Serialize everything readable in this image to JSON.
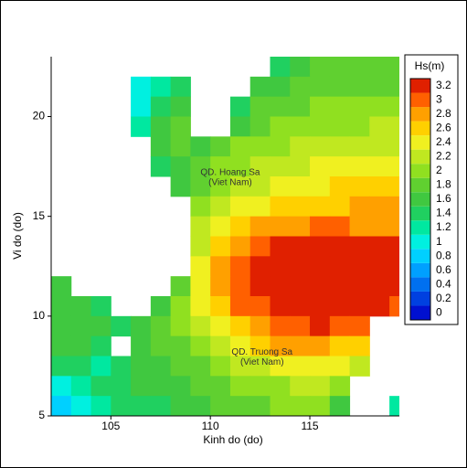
{
  "chart_data": {
    "type": "heatmap",
    "xlabel": "Kinh do (do)",
    "ylabel": "Vi do (do)",
    "xlim": [
      102,
      119.5
    ],
    "ylim": [
      5,
      23
    ],
    "xticks": [
      105,
      110,
      115
    ],
    "yticks": [
      5,
      10,
      15,
      20
    ],
    "colorbar_title": "Hs(m)",
    "clim": [
      -0.1,
      3.3
    ],
    "colorbar_ticks": [
      0,
      0.2,
      0.4,
      0.6,
      0.8,
      1,
      1.2,
      1.4,
      1.6,
      1.8,
      2,
      2.2,
      2.4,
      2.6,
      2.8,
      3,
      3.2
    ],
    "colors": [
      "#0010d0",
      "#0040e0",
      "#0070f0",
      "#00a0ff",
      "#00d0ff",
      "#00f0e0",
      "#00e8a0",
      "#20d060",
      "#40c840",
      "#60d030",
      "#90e020",
      "#c0e820",
      "#f0f020",
      "#ffd000",
      "#ffa000",
      "#ff6000",
      "#e02000"
    ],
    "annotations": [
      {
        "lines": [
          "QD. Hoang Sa",
          "(Viet Nam)"
        ],
        "x": 111,
        "y": 17.2
      },
      {
        "lines": [
          "QD. Truong Sa",
          "(Viet Nam)"
        ],
        "x": 112.6,
        "y": 8.2
      }
    ],
    "x": [
      102.5,
      103.5,
      104.5,
      105.5,
      106.5,
      107.5,
      108.5,
      109.5,
      110.5,
      111.5,
      112.5,
      113.5,
      114.5,
      115.5,
      116.5,
      117.5,
      118.5,
      119.5
    ],
    "y": [
      22.5,
      21.5,
      20.5,
      19.5,
      18.5,
      17.5,
      16.5,
      15.5,
      14.5,
      13.5,
      12.5,
      11.5,
      10.5,
      9.5,
      8.5,
      7.5,
      6.5,
      5.5
    ],
    "z": [
      [
        null,
        null,
        null,
        null,
        null,
        null,
        null,
        null,
        null,
        null,
        null,
        1.4,
        1.6,
        1.8,
        1.8,
        1.8,
        1.8,
        1.8
      ],
      [
        null,
        null,
        null,
        null,
        1.0,
        1.2,
        1.4,
        null,
        null,
        null,
        1.6,
        1.6,
        1.8,
        1.8,
        1.8,
        1.8,
        1.8,
        1.8
      ],
      [
        null,
        null,
        null,
        null,
        1.0,
        1.4,
        1.6,
        null,
        null,
        1.4,
        1.8,
        1.8,
        1.8,
        2.0,
        2.0,
        2.0,
        2.0,
        2.0
      ],
      [
        null,
        null,
        null,
        null,
        1.2,
        1.6,
        1.8,
        null,
        null,
        1.6,
        1.8,
        2.0,
        2.0,
        2.0,
        2.0,
        2.0,
        2.2,
        2.2
      ],
      [
        null,
        null,
        null,
        null,
        null,
        1.6,
        1.8,
        1.6,
        1.8,
        2.0,
        2.0,
        2.0,
        2.2,
        2.2,
        2.2,
        2.2,
        2.2,
        2.2
      ],
      [
        null,
        null,
        null,
        null,
        null,
        1.4,
        1.6,
        1.8,
        2.0,
        2.0,
        2.2,
        2.2,
        2.2,
        2.4,
        2.4,
        2.4,
        2.4,
        2.4
      ],
      [
        null,
        null,
        null,
        null,
        null,
        null,
        1.6,
        1.8,
        2.0,
        2.2,
        2.2,
        2.4,
        2.4,
        2.4,
        2.6,
        2.6,
        2.6,
        2.6
      ],
      [
        null,
        null,
        null,
        null,
        null,
        null,
        null,
        2.0,
        2.2,
        2.4,
        2.4,
        2.6,
        2.6,
        2.6,
        2.6,
        2.8,
        2.8,
        2.8
      ],
      [
        null,
        null,
        null,
        null,
        null,
        null,
        null,
        2.2,
        2.4,
        2.6,
        2.8,
        2.8,
        2.8,
        3.0,
        3.0,
        2.8,
        2.8,
        2.8
      ],
      [
        null,
        null,
        null,
        null,
        null,
        null,
        null,
        2.2,
        2.6,
        2.8,
        3.0,
        3.2,
        3.2,
        3.2,
        3.2,
        3.2,
        3.2,
        3.2
      ],
      [
        null,
        null,
        null,
        null,
        null,
        null,
        null,
        2.4,
        2.8,
        3.0,
        3.2,
        3.2,
        3.2,
        3.2,
        3.2,
        3.2,
        3.2,
        3.2
      ],
      [
        1.6,
        null,
        null,
        null,
        null,
        null,
        1.8,
        2.4,
        2.8,
        3.0,
        3.2,
        3.2,
        3.2,
        3.2,
        3.2,
        3.2,
        3.2,
        3.2
      ],
      [
        1.6,
        1.6,
        1.4,
        null,
        null,
        1.6,
        2.0,
        2.4,
        2.6,
        3.0,
        3.0,
        3.2,
        3.2,
        3.2,
        3.2,
        3.2,
        3.2,
        3.0
      ],
      [
        1.6,
        1.6,
        1.6,
        1.4,
        1.6,
        1.8,
        2.0,
        2.2,
        2.4,
        2.6,
        2.8,
        3.0,
        3.0,
        3.2,
        3.0,
        3.0,
        null,
        null
      ],
      [
        1.6,
        1.6,
        1.4,
        null,
        1.6,
        1.8,
        1.8,
        2.0,
        2.2,
        2.4,
        2.6,
        2.8,
        2.8,
        2.8,
        2.6,
        2.6,
        null,
        null
      ],
      [
        1.4,
        1.4,
        1.2,
        1.4,
        1.6,
        1.6,
        1.8,
        1.8,
        2.0,
        2.2,
        2.2,
        2.4,
        2.4,
        2.4,
        2.4,
        2.2,
        null,
        null
      ],
      [
        1.0,
        1.2,
        1.4,
        1.4,
        1.6,
        1.6,
        1.6,
        1.8,
        1.8,
        2.0,
        2.0,
        2.0,
        2.2,
        2.2,
        2.0,
        null,
        null,
        null
      ],
      [
        0.8,
        1.0,
        1.2,
        1.4,
        1.4,
        1.4,
        1.6,
        1.6,
        1.8,
        1.8,
        1.8,
        2.0,
        2.0,
        2.0,
        1.6,
        null,
        null,
        1.2
      ]
    ]
  }
}
